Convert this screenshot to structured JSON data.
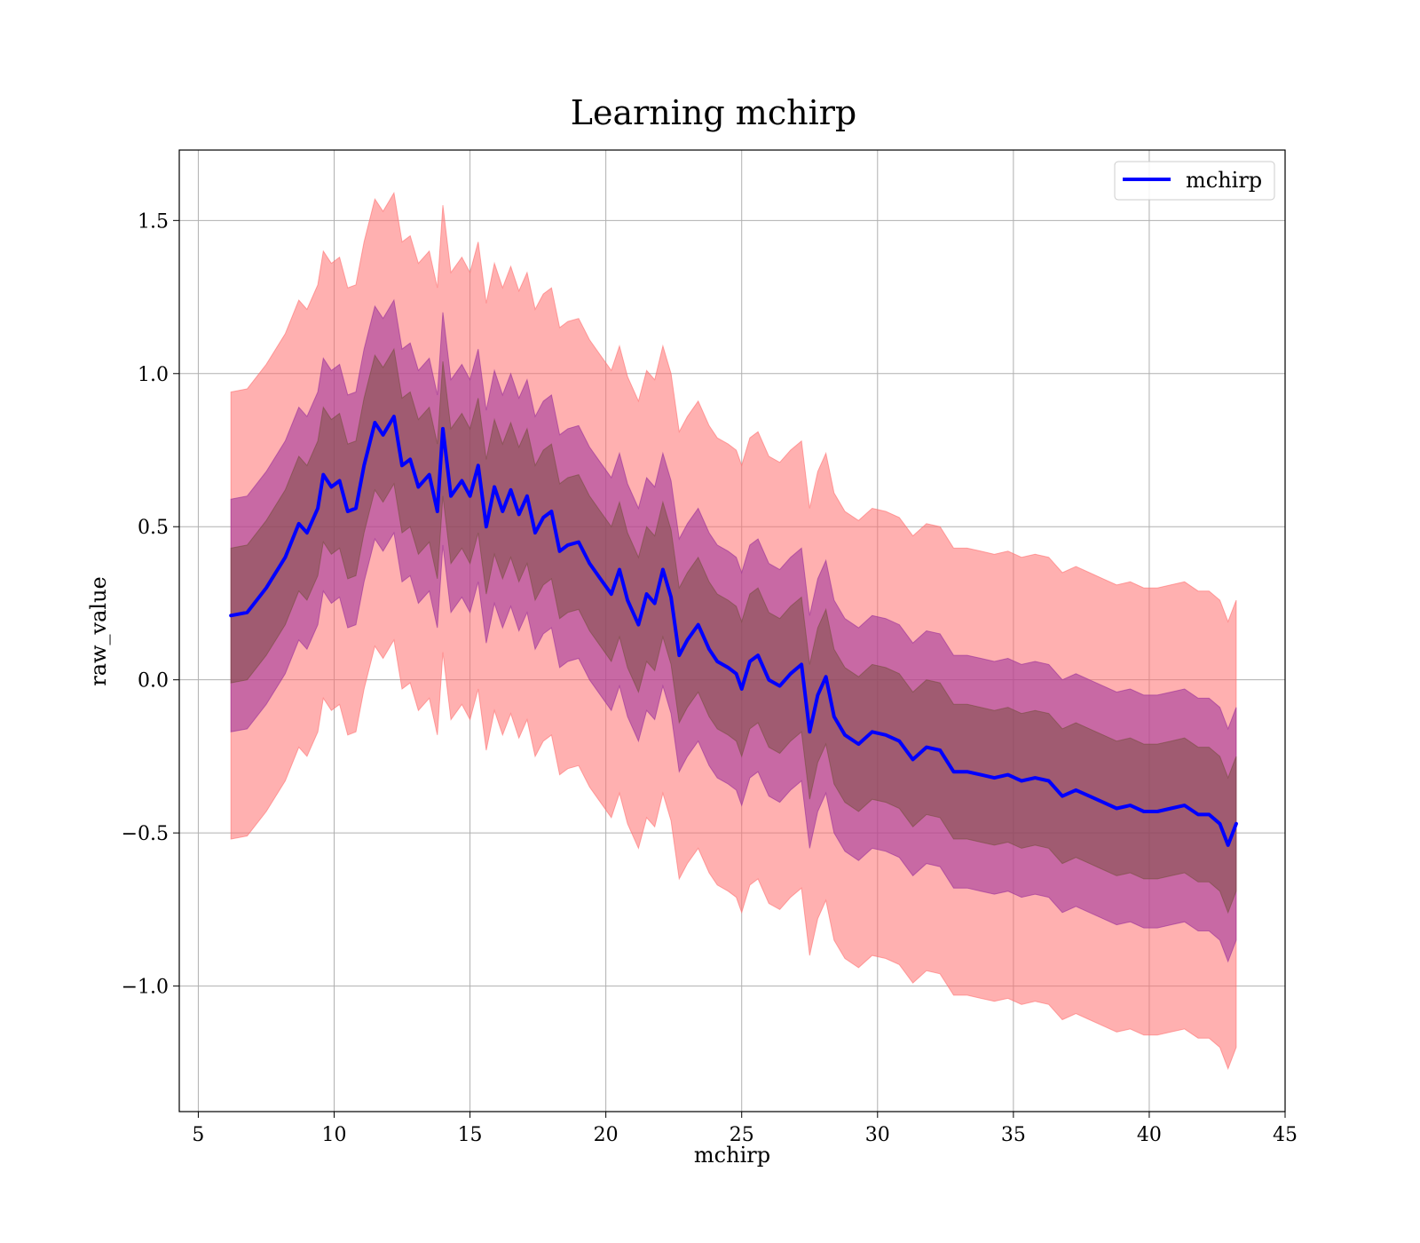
{
  "chart_data": {
    "type": "line",
    "title": "Learning mchirp",
    "xlabel": "mchirp",
    "ylabel": "raw_value",
    "xlim": [
      4.3,
      45.0
    ],
    "ylim": [
      -1.41,
      1.73
    ],
    "grid": true,
    "legend_position": "top-right",
    "x_ticks": [
      5,
      10,
      15,
      20,
      25,
      30,
      35,
      40,
      45
    ],
    "x_tick_labels": [
      "5",
      "10",
      "15",
      "20",
      "25",
      "30",
      "35",
      "40",
      "45"
    ],
    "y_ticks": [
      1.5,
      1.0,
      0.5,
      0.0,
      -0.5,
      -1.0
    ],
    "y_tick_labels": [
      "1.5",
      "1.0",
      "0.5",
      "0.0",
      "−0.5",
      "−1.0"
    ],
    "band_colors": {
      "outer": "#ff6f6f",
      "middle": "#9a2f9a",
      "inner": "#6e4b34"
    },
    "band_widths": {
      "inner_half_width": 0.22,
      "middle_half_width": 0.38,
      "outer_half_width": 0.73
    },
    "series": [
      {
        "name": "mchirp",
        "color": "#0000ff",
        "x": [
          6.2,
          6.8,
          7.5,
          8.2,
          8.7,
          9.0,
          9.4,
          9.6,
          9.9,
          10.2,
          10.5,
          10.8,
          11.1,
          11.5,
          11.8,
          12.2,
          12.5,
          12.8,
          13.1,
          13.5,
          13.8,
          14.0,
          14.3,
          14.7,
          15.0,
          15.3,
          15.6,
          15.9,
          16.2,
          16.5,
          16.8,
          17.1,
          17.4,
          17.7,
          18.0,
          18.3,
          18.6,
          19.0,
          19.4,
          19.8,
          20.2,
          20.5,
          20.8,
          21.2,
          21.5,
          21.8,
          22.1,
          22.4,
          22.7,
          23.0,
          23.4,
          23.8,
          24.1,
          24.5,
          24.8,
          25.0,
          25.3,
          25.6,
          26.0,
          26.4,
          26.8,
          27.2,
          27.5,
          27.8,
          28.1,
          28.4,
          28.8,
          29.3,
          29.8,
          30.3,
          30.8,
          31.3,
          31.8,
          32.3,
          32.8,
          33.3,
          33.8,
          34.3,
          34.8,
          35.3,
          35.8,
          36.3,
          36.8,
          37.3,
          37.8,
          38.3,
          38.8,
          39.3,
          39.8,
          40.3,
          40.8,
          41.3,
          41.8,
          42.2,
          42.6,
          42.9,
          43.2
        ],
        "y": [
          0.21,
          0.22,
          0.3,
          0.4,
          0.51,
          0.48,
          0.56,
          0.67,
          0.63,
          0.65,
          0.55,
          0.56,
          0.7,
          0.84,
          0.8,
          0.86,
          0.7,
          0.72,
          0.63,
          0.67,
          0.55,
          0.82,
          0.6,
          0.65,
          0.6,
          0.7,
          0.5,
          0.63,
          0.55,
          0.62,
          0.54,
          0.6,
          0.48,
          0.53,
          0.55,
          0.42,
          0.44,
          0.45,
          0.38,
          0.33,
          0.28,
          0.36,
          0.26,
          0.18,
          0.28,
          0.25,
          0.36,
          0.27,
          0.08,
          0.13,
          0.18,
          0.1,
          0.06,
          0.04,
          0.02,
          -0.03,
          0.06,
          0.08,
          0.0,
          -0.02,
          0.02,
          0.05,
          -0.17,
          -0.05,
          0.01,
          -0.12,
          -0.18,
          -0.21,
          -0.17,
          -0.18,
          -0.2,
          -0.26,
          -0.22,
          -0.23,
          -0.3,
          -0.3,
          -0.31,
          -0.32,
          -0.31,
          -0.33,
          -0.32,
          -0.33,
          -0.38,
          -0.36,
          -0.38,
          -0.4,
          -0.42,
          -0.41,
          -0.43,
          -0.43,
          -0.42,
          -0.41,
          -0.44,
          -0.44,
          -0.47,
          -0.54,
          -0.47
        ]
      }
    ]
  }
}
